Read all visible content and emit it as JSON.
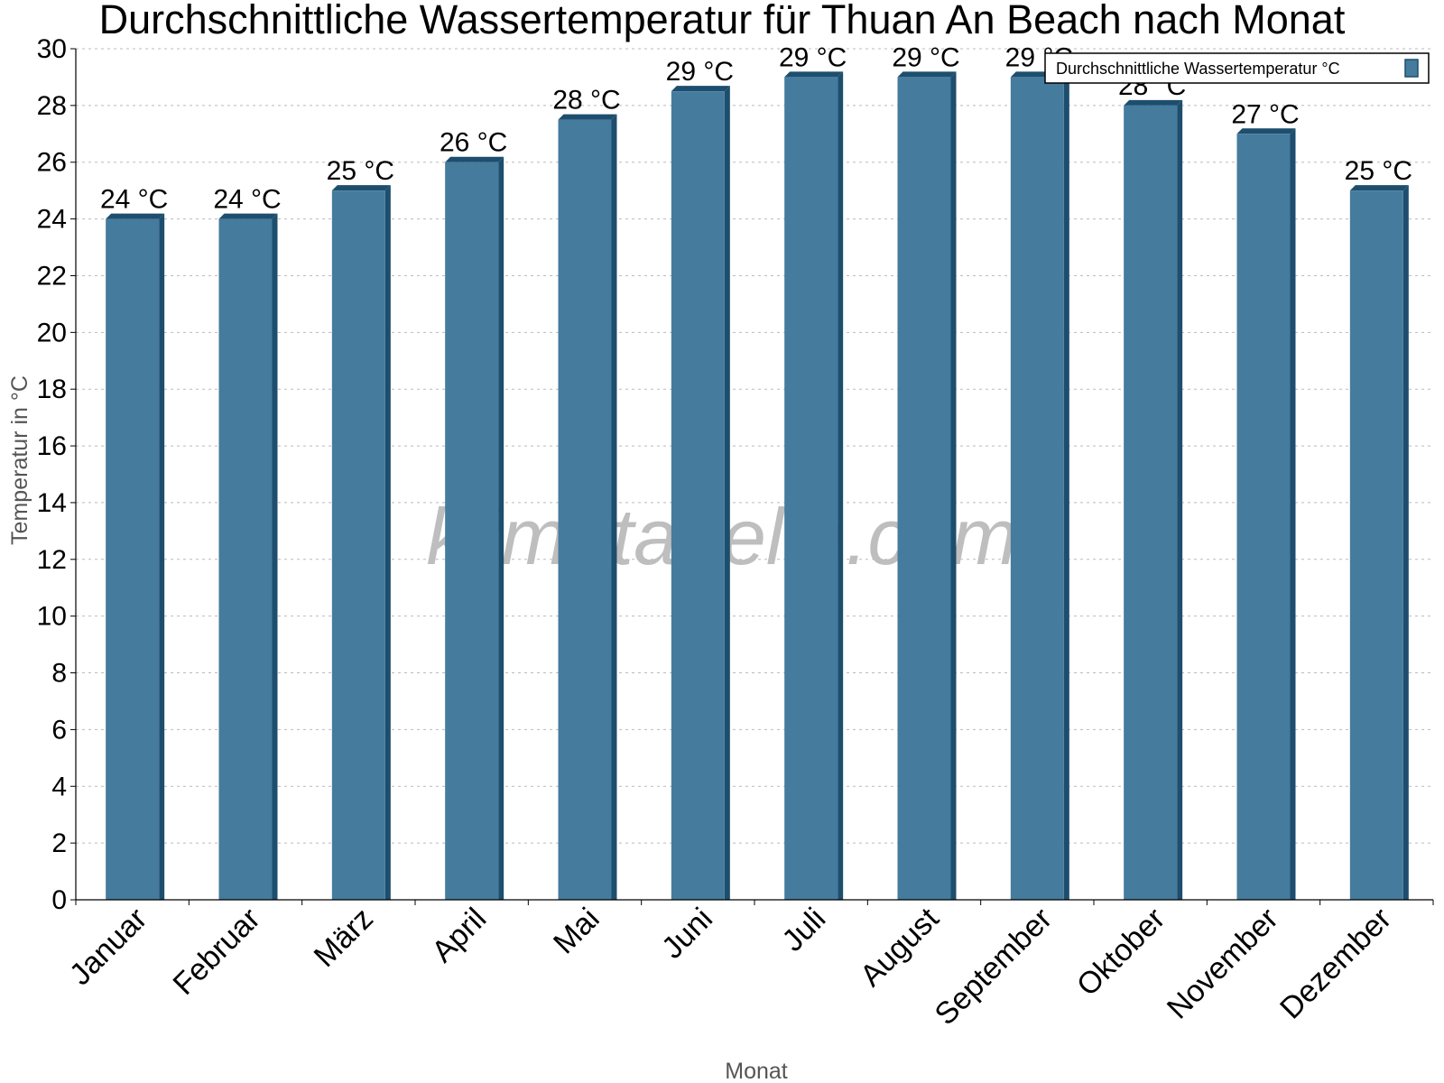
{
  "chart_data": {
    "type": "bar",
    "title": "Durchschnittliche Wassertemperatur für Thuan An Beach nach Monat",
    "xlabel": "Monat",
    "ylabel": "Temperatur in °C",
    "ylim": [
      0,
      30
    ],
    "ytick_step": 2,
    "grid": true,
    "legend_position": "top-right",
    "watermark": "klimatabelle.com",
    "categories": [
      "Januar",
      "Februar",
      "März",
      "April",
      "Mai",
      "Juni",
      "Juli",
      "August",
      "September",
      "Oktober",
      "November",
      "Dezember"
    ],
    "series": [
      {
        "name": "Durchschnittliche Wassertemperatur °C",
        "color": "#457b9d",
        "edge_color": "#1d4e6e",
        "values": [
          24,
          24,
          25,
          26,
          27.5,
          28.5,
          29,
          29,
          29,
          28,
          27,
          25
        ],
        "labels": [
          "24 °C",
          "24 °C",
          "25 °C",
          "26 °C",
          "28 °C",
          "29 °C",
          "29 °C",
          "29 °C",
          "29 °C",
          "28 °C",
          "27 °C",
          "25 °C"
        ]
      }
    ]
  }
}
